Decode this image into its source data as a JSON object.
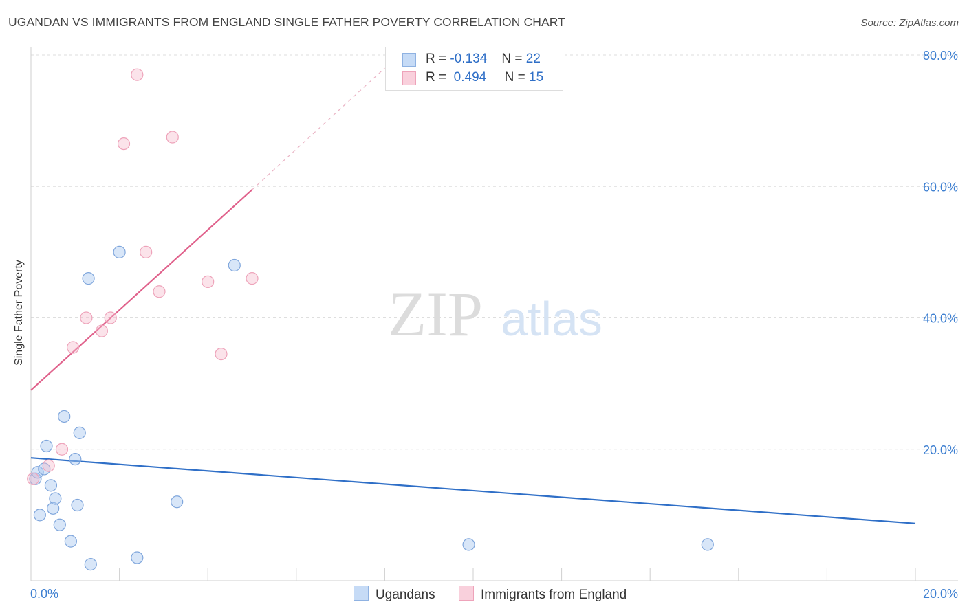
{
  "title": "UGANDAN VS IMMIGRANTS FROM ENGLAND SINGLE FATHER POVERTY CORRELATION CHART",
  "source": "Source: ZipAtlas.com",
  "watermark": {
    "zip": "ZIP",
    "atlas": "atlas"
  },
  "legend": {
    "r_label": "R =",
    "n_label": "N =",
    "rows": [
      {
        "r": "-0.134",
        "n": "22"
      },
      {
        "r": "0.494",
        "n": "15"
      }
    ]
  },
  "chart_data": {
    "type": "scatter",
    "title": "UGANDAN VS IMMIGRANTS FROM ENGLAND SINGLE FATHER POVERTY CORRELATION CHART",
    "xlabel": "",
    "ylabel": "Single Father Poverty",
    "xlim": [
      0,
      20
    ],
    "ylim": [
      0,
      80
    ],
    "x_tick_labels": [
      "0.0%",
      "20.0%"
    ],
    "y_ticks": [
      20,
      40,
      60,
      80
    ],
    "y_tick_labels": [
      "20.0%",
      "40.0%",
      "60.0%",
      "80.0%"
    ],
    "grid": true,
    "legend_position": "bottom",
    "series": [
      {
        "name": "Ugandans",
        "color": "#a9c7ef",
        "line_color": "#2f6fc7",
        "points": [
          [
            0.1,
            15.5
          ],
          [
            0.15,
            16.5
          ],
          [
            0.2,
            10.0
          ],
          [
            0.3,
            17.0
          ],
          [
            0.35,
            20.5
          ],
          [
            0.45,
            14.5
          ],
          [
            0.5,
            11.0
          ],
          [
            0.55,
            12.5
          ],
          [
            0.65,
            8.5
          ],
          [
            0.75,
            25.0
          ],
          [
            0.9,
            6.0
          ],
          [
            1.0,
            18.5
          ],
          [
            1.05,
            11.5
          ],
          [
            1.1,
            22.5
          ],
          [
            1.3,
            46.0
          ],
          [
            1.35,
            2.5
          ],
          [
            2.0,
            50.0
          ],
          [
            2.4,
            3.5
          ],
          [
            3.3,
            12.0
          ],
          [
            4.6,
            48.0
          ],
          [
            9.9,
            5.5
          ],
          [
            15.3,
            5.5
          ]
        ],
        "trend": {
          "x": [
            0,
            20
          ],
          "y": [
            18.7,
            8.7
          ]
        }
      },
      {
        "name": "Immigrants from England",
        "color": "#f6b8ca",
        "line_color": "#e0628c",
        "points": [
          [
            0.05,
            15.5
          ],
          [
            0.4,
            17.5
          ],
          [
            0.7,
            20.0
          ],
          [
            0.95,
            35.5
          ],
          [
            1.25,
            40.0
          ],
          [
            1.6,
            38.0
          ],
          [
            1.8,
            40.0
          ],
          [
            2.1,
            66.5
          ],
          [
            2.4,
            77.0
          ],
          [
            2.6,
            50.0
          ],
          [
            2.9,
            44.0
          ],
          [
            3.2,
            67.5
          ],
          [
            4.0,
            45.5
          ],
          [
            4.3,
            34.5
          ],
          [
            5.0,
            46.0
          ]
        ],
        "trend": {
          "x": [
            0,
            5.0
          ],
          "y": [
            29.0,
            59.5
          ]
        },
        "trend_extension": {
          "x": [
            5.0,
            8.0
          ],
          "y": [
            59.5,
            78.0
          ]
        }
      }
    ]
  }
}
